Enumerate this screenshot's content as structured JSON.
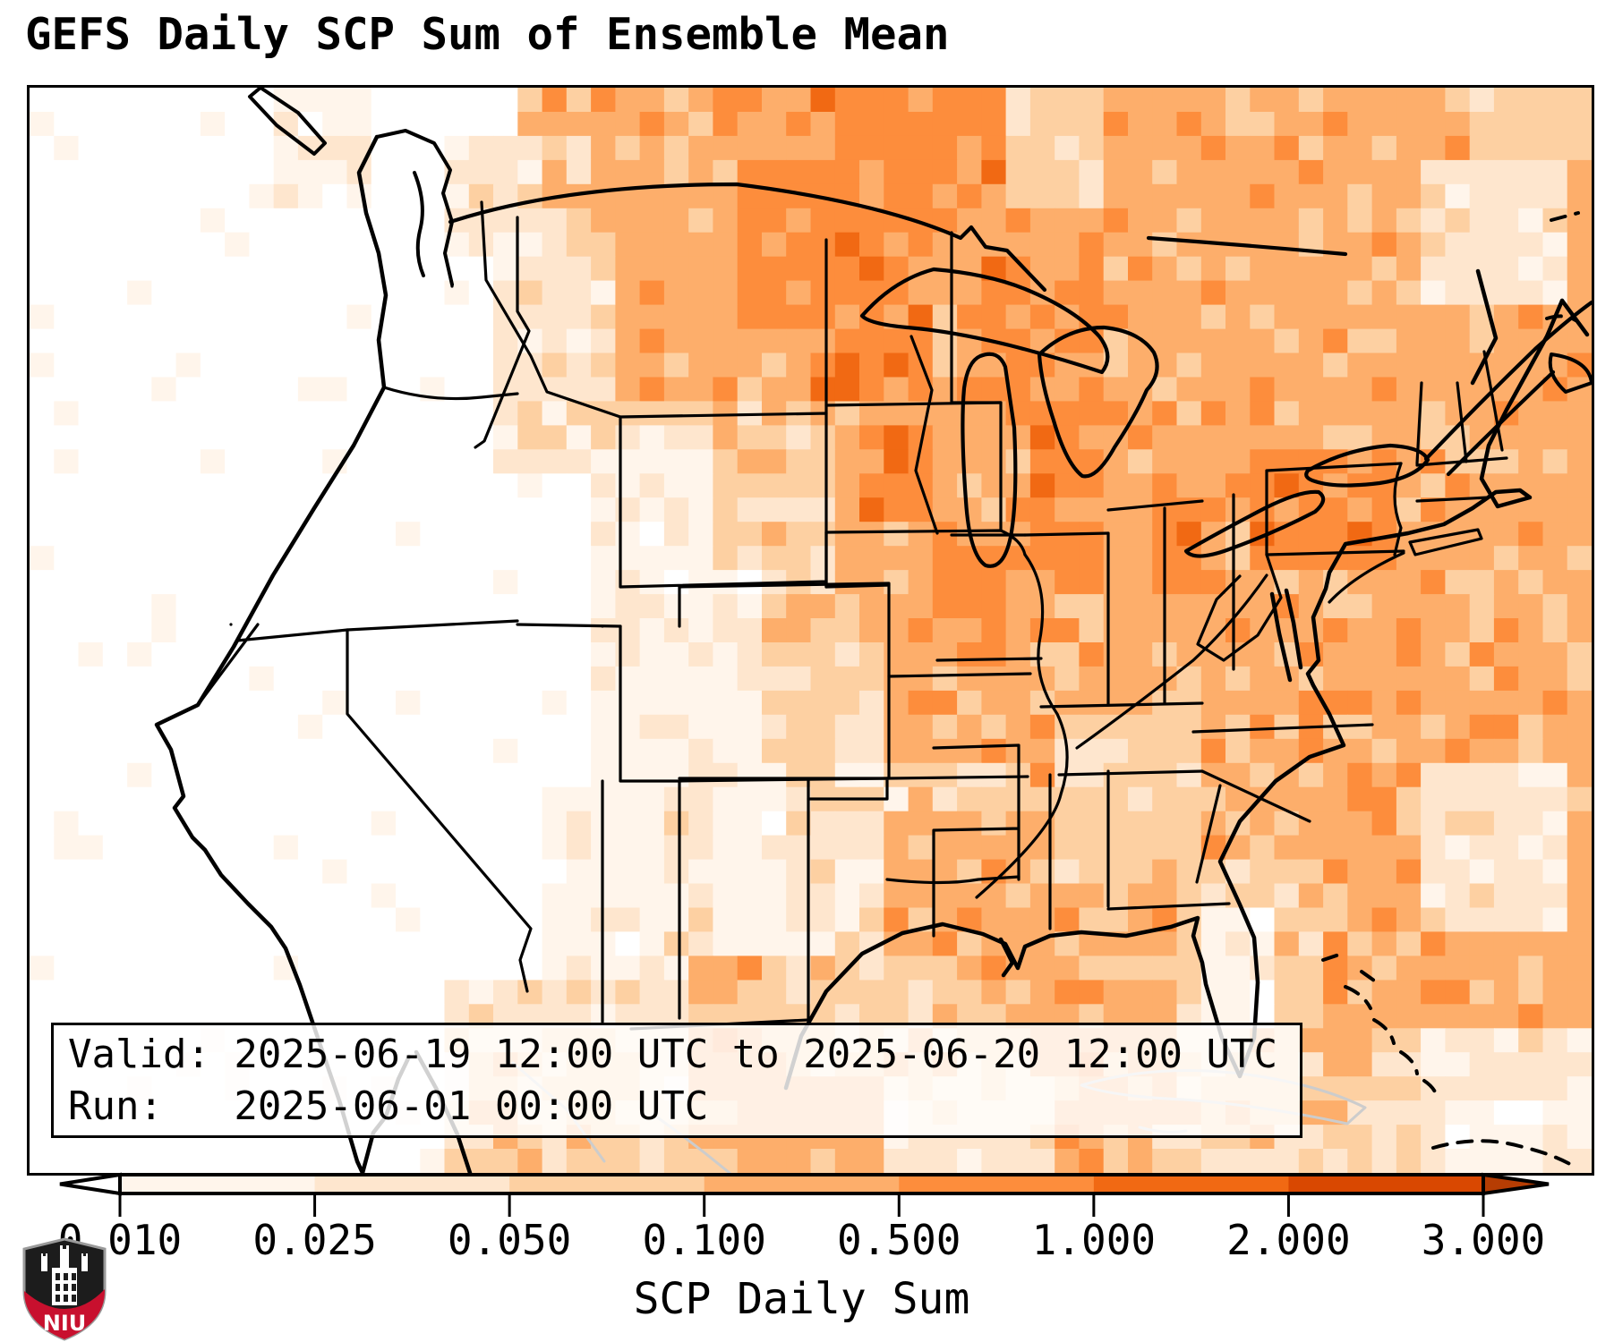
{
  "title": "GEFS Daily SCP Sum of Ensemble Mean",
  "info_box": {
    "valid_line": "Valid: 2025-06-19 12:00 UTC to 2025-06-20 12:00 UTC",
    "run_line": "Run:   2025-06-01 00:00 UTC"
  },
  "colorbar": {
    "label": "SCP Daily Sum",
    "ticks": [
      "0.010",
      "0.025",
      "0.050",
      "0.100",
      "0.500",
      "1.000",
      "2.000",
      "3.000"
    ],
    "boundaries": [
      0.01,
      0.025,
      0.05,
      0.1,
      0.5,
      1.0,
      2.0,
      3.0
    ],
    "segment_colors": [
      "#fff5eb",
      "#fee6ce",
      "#fdd0a2",
      "#fdae6b",
      "#fd8d3c",
      "#f16913",
      "#d94801"
    ],
    "under_color": "#ffffff",
    "over_color": "#b63d03",
    "outline_color": "#000000"
  },
  "logo": {
    "text": "NIU",
    "red": "#c8102e",
    "black": "#1c1c1c",
    "trim": "#9a9a9a"
  },
  "map": {
    "border_color": "#000000",
    "state_line_color": "#000000",
    "foreign_line_color": "#cccccc",
    "palette": [
      "#ffffff",
      "#fff5eb",
      "#fee6ce",
      "#fdd0a2",
      "#fdae6b",
      "#fd8d3c",
      "#f16913",
      "#d94801"
    ],
    "grid": {
      "cols": 64,
      "rows": 45,
      "rules": [
        [
          0,
          63,
          0,
          44,
          4
        ],
        [
          14,
          63,
          0,
          5,
          4
        ],
        [
          28,
          39,
          0,
          5,
          5
        ],
        [
          40,
          48,
          0,
          4,
          3
        ],
        [
          44,
          63,
          0,
          6,
          4
        ],
        [
          59,
          63,
          0,
          2,
          3
        ],
        [
          49,
          63,
          12,
          40,
          4
        ],
        [
          33,
          53,
          37,
          44,
          4
        ],
        [
          0,
          19,
          0,
          15,
          0
        ],
        [
          10,
          13,
          0,
          4,
          1
        ],
        [
          0,
          22,
          15,
          29,
          0
        ],
        [
          0,
          21,
          29,
          37,
          0
        ],
        [
          0,
          16,
          37,
          44,
          0
        ],
        [
          17,
          23,
          2,
          6,
          2
        ],
        [
          19,
          24,
          5,
          15,
          2
        ],
        [
          21,
          25,
          2,
          5,
          3
        ],
        [
          23,
          33,
          2,
          5,
          4
        ],
        [
          24,
          33,
          5,
          13,
          4
        ],
        [
          29,
          33,
          3,
          9,
          5
        ],
        [
          33,
          40,
          5,
          18,
          5
        ],
        [
          30,
          33,
          13,
          18,
          4
        ],
        [
          24,
          32,
          13,
          20,
          3
        ],
        [
          24,
          27,
          13,
          20,
          2
        ],
        [
          23,
          27,
          15,
          29,
          1
        ],
        [
          27,
          31,
          20,
          28,
          1
        ],
        [
          30,
          35,
          20,
          28,
          3
        ],
        [
          21,
          26,
          29,
          37,
          1
        ],
        [
          26,
          30,
          29,
          35,
          2
        ],
        [
          33,
          41,
          18,
          22,
          5
        ],
        [
          33,
          36,
          18,
          22,
          4
        ],
        [
          35,
          41,
          22,
          28,
          4
        ],
        [
          37,
          45,
          6,
          18,
          4
        ],
        [
          39,
          43,
          7,
          12,
          5
        ],
        [
          41,
          46,
          12,
          20,
          5
        ],
        [
          44,
          47,
          14,
          20,
          4
        ],
        [
          44,
          51,
          8,
          24,
          4
        ],
        [
          46,
          49,
          16,
          20,
          5
        ],
        [
          49,
          55,
          12,
          20,
          4
        ],
        [
          50,
          55,
          15,
          19,
          5
        ],
        [
          56,
          63,
          6,
          12,
          4
        ],
        [
          57,
          62,
          3,
          8,
          2
        ],
        [
          42,
          56,
          24,
          33,
          4
        ],
        [
          42,
          47,
          26,
          32,
          3
        ],
        [
          30,
          40,
          28,
          40,
          3
        ],
        [
          28,
          32,
          28,
          35,
          1
        ],
        [
          31,
          35,
          28,
          35,
          2
        ],
        [
          35,
          41,
          30,
          37,
          4
        ],
        [
          47,
          52,
          32,
          40,
          3
        ],
        [
          48,
          50,
          34,
          38,
          1
        ],
        [
          32,
          37,
          36,
          40,
          3
        ],
        [
          35,
          41,
          41,
          44,
          2
        ],
        [
          17,
          26,
          37,
          44,
          2
        ],
        [
          18,
          24,
          39,
          44,
          3
        ],
        [
          55,
          60,
          25,
          30,
          4
        ],
        [
          57,
          62,
          28,
          34,
          2
        ],
        [
          55,
          63,
          39,
          44,
          2
        ],
        [
          46,
          54,
          41,
          44,
          3
        ],
        [
          57,
          63,
          42,
          44,
          1
        ]
      ],
      "specks": [
        [
          32,
          12,
          6
        ],
        [
          33,
          11,
          6
        ],
        [
          39,
          3,
          6
        ],
        [
          51,
          16,
          6
        ],
        [
          36,
          9,
          6
        ]
      ]
    }
  },
  "chart_data": {
    "type": "heatmap",
    "title": "GEFS Daily SCP Sum of Ensemble Mean",
    "colorbar_label": "SCP Daily Sum",
    "levels": [
      0.01,
      0.025,
      0.05,
      0.1,
      0.5,
      1.0,
      2.0,
      3.0
    ],
    "legend_position": "bottom",
    "notes": "Gridded SCP daily-sum ensemble mean over CONUS: near-zero (white) along Pacific coast and interior West; 0.5-2 (strong orange) over Montana, the Dakotas, upper Midwest, Illinois and Pennsylvania; 0.1-0.5 (moderate orange) over most of the East, Gulf of Mexico and western Atlantic; 0.01-0.1 (cream) over Texas, the Southwest, Florida and northern Mexico."
  }
}
